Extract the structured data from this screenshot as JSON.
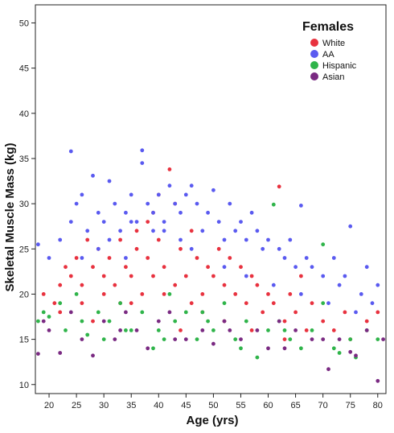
{
  "chart_data": {
    "type": "scatter",
    "xlabel": "Age (yrs)",
    "ylabel": "Skeletal Muscle Mass (kg)",
    "xlim": [
      17.5,
      81.5
    ],
    "ylim": [
      9,
      52
    ],
    "xticks": [
      20,
      25,
      30,
      35,
      40,
      45,
      50,
      55,
      60,
      65,
      70,
      75,
      80
    ],
    "yticks": [
      10,
      15,
      20,
      25,
      30,
      35,
      40,
      45,
      50
    ],
    "grid": false,
    "legend": {
      "title": "Females",
      "placement": "top-right"
    },
    "series": [
      {
        "name": "White",
        "color": "#e8323f",
        "x": [
          19,
          21,
          22,
          23,
          24,
          25,
          26,
          26,
          27,
          28,
          29,
          30,
          30,
          31,
          32,
          33,
          34,
          35,
          35,
          36,
          37,
          38,
          38,
          39,
          40,
          40,
          41,
          42,
          43,
          44,
          45,
          46,
          46,
          47,
          48,
          49,
          50,
          51,
          52,
          53,
          54,
          55,
          56,
          57,
          58,
          59,
          60,
          61,
          62,
          63,
          64,
          65,
          66,
          67,
          68,
          70,
          72,
          74,
          75,
          78,
          80,
          22,
          28,
          33,
          41,
          44,
          48,
          52,
          57,
          63,
          36,
          39,
          43
        ],
        "y": [
          20,
          19,
          21,
          23,
          22,
          24,
          19,
          21,
          26,
          23,
          25,
          20,
          22,
          24,
          21,
          26,
          23,
          19,
          22,
          25,
          20,
          24,
          28,
          22,
          31,
          26,
          23,
          33.8,
          21,
          25,
          22,
          27,
          19,
          24,
          20,
          23,
          22,
          25,
          21,
          24,
          20,
          23,
          19,
          22,
          21,
          18,
          20,
          19,
          31.9,
          17,
          20,
          18,
          22,
          16,
          19,
          17,
          16,
          18,
          15,
          17,
          18,
          18,
          17,
          19,
          20,
          16,
          18,
          17,
          16,
          15,
          27,
          29,
          30
        ]
      },
      {
        "name": "AA",
        "color": "#5a5af0",
        "x": [
          18,
          20,
          22,
          24,
          24,
          25,
          26,
          27,
          28,
          29,
          30,
          31,
          32,
          33,
          34,
          35,
          36,
          37,
          37,
          38,
          39,
          40,
          41,
          42,
          43,
          44,
          45,
          46,
          47,
          48,
          49,
          50,
          51,
          52,
          53,
          54,
          55,
          56,
          57,
          58,
          59,
          60,
          62,
          63,
          64,
          65,
          66,
          67,
          68,
          70,
          72,
          73,
          74,
          75,
          77,
          78,
          79,
          80,
          26,
          31,
          35,
          41,
          46,
          52,
          56,
          61,
          66,
          71,
          76,
          29,
          34,
          39,
          44
        ],
        "y": [
          25.5,
          24,
          26,
          28,
          35.8,
          30,
          31,
          27,
          33.1,
          29,
          28,
          32.5,
          30,
          27,
          29,
          31,
          28,
          35.9,
          34.5,
          30,
          29,
          31,
          28,
          32,
          30,
          29,
          31,
          32,
          30,
          27,
          29,
          31.5,
          28,
          26,
          30,
          27,
          28,
          26,
          29,
          27,
          25,
          26,
          25,
          24,
          26,
          23,
          29.8,
          24,
          23,
          22,
          24,
          21,
          22,
          27.5,
          20,
          23,
          19,
          21,
          24,
          26,
          28,
          27,
          25,
          23,
          22,
          21,
          20,
          19,
          18,
          25,
          24,
          27,
          26
        ]
      },
      {
        "name": "Hispanic",
        "color": "#2fb44a",
        "x": [
          18,
          19,
          20,
          22,
          23,
          25,
          27,
          29,
          30,
          31,
          33,
          35,
          37,
          39,
          40,
          42,
          43,
          45,
          47,
          49,
          50,
          52,
          54,
          56,
          58,
          60,
          61,
          62,
          64,
          66,
          68,
          70,
          72,
          73,
          75,
          76,
          78,
          80,
          26,
          34,
          41,
          48,
          55,
          63,
          70
        ],
        "y": [
          17,
          18,
          17.5,
          19,
          16,
          20,
          15.5,
          18,
          15,
          17,
          19,
          16,
          18,
          14,
          16,
          20,
          17,
          18,
          15,
          17,
          16,
          19,
          15,
          17,
          13,
          16,
          29.9,
          17,
          15,
          14,
          16,
          25.5,
          14,
          13.5,
          15,
          13,
          16,
          15,
          17,
          16,
          15,
          18,
          14,
          16,
          19
        ]
      },
      {
        "name": "Asian",
        "color": "#7a2a82",
        "x": [
          18,
          19,
          20,
          22,
          24,
          26,
          28,
          30,
          32,
          34,
          36,
          38,
          40,
          42,
          45,
          48,
          50,
          52,
          55,
          58,
          60,
          62,
          65,
          68,
          70,
          71,
          73,
          75,
          76,
          78,
          80,
          81,
          33,
          43,
          53,
          63
        ],
        "y": [
          13.4,
          17,
          16,
          13.5,
          18,
          15,
          13.2,
          17,
          15,
          18,
          16,
          14,
          17,
          18,
          15,
          16,
          14.5,
          17,
          15,
          16,
          14,
          17,
          16,
          15,
          15,
          11.7,
          15,
          13.6,
          13.2,
          16,
          10.4,
          15,
          16,
          15,
          16,
          14
        ]
      }
    ]
  }
}
